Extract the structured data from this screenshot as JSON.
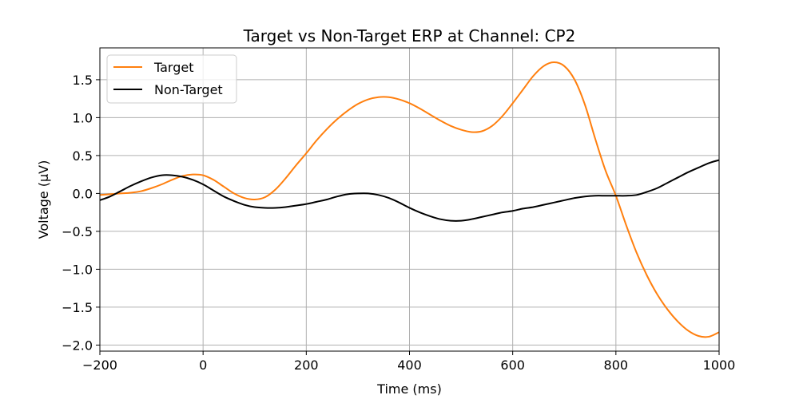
{
  "chart_data": {
    "type": "line",
    "title": "Target vs Non-Target ERP at Channel: CP2",
    "xlabel": "Time (ms)",
    "ylabel": "Voltage (μV)",
    "xlim": [
      -200,
      1000
    ],
    "ylim": [
      -2.08,
      1.92
    ],
    "xticks": [
      -200,
      0,
      200,
      400,
      600,
      800,
      1000
    ],
    "xtick_labels": [
      "−200",
      "0",
      "200",
      "400",
      "600",
      "800",
      "1000"
    ],
    "yticks": [
      -2.0,
      -1.5,
      -1.0,
      -0.5,
      0.0,
      0.5,
      1.0,
      1.5
    ],
    "ytick_labels": [
      "−2.0",
      "−1.5",
      "−1.0",
      "−0.5",
      "0.0",
      "0.5",
      "1.0",
      "1.5"
    ],
    "grid": true,
    "legend_position": "top-left",
    "series": [
      {
        "name": "Target",
        "color": "#ff7f0e",
        "x": [
          -200,
          -180,
          -160,
          -140,
          -120,
          -100,
          -80,
          -60,
          -40,
          -20,
          0,
          20,
          40,
          60,
          80,
          100,
          120,
          140,
          160,
          180,
          200,
          220,
          240,
          260,
          280,
          300,
          320,
          340,
          360,
          380,
          400,
          420,
          440,
          460,
          480,
          500,
          520,
          540,
          560,
          580,
          600,
          620,
          640,
          660,
          680,
          700,
          720,
          740,
          760,
          780,
          800,
          820,
          840,
          860,
          880,
          900,
          920,
          940,
          960,
          980,
          1000
        ],
        "y": [
          -0.02,
          -0.01,
          0.0,
          0.01,
          0.03,
          0.07,
          0.12,
          0.18,
          0.23,
          0.25,
          0.24,
          0.18,
          0.09,
          0.0,
          -0.06,
          -0.08,
          -0.05,
          0.05,
          0.2,
          0.37,
          0.53,
          0.7,
          0.85,
          0.98,
          1.09,
          1.18,
          1.24,
          1.27,
          1.27,
          1.24,
          1.19,
          1.12,
          1.04,
          0.96,
          0.89,
          0.84,
          0.81,
          0.82,
          0.89,
          1.02,
          1.19,
          1.37,
          1.55,
          1.68,
          1.73,
          1.68,
          1.5,
          1.17,
          0.72,
          0.3,
          -0.03,
          -0.42,
          -0.78,
          -1.08,
          -1.33,
          -1.53,
          -1.69,
          -1.81,
          -1.88,
          -1.89,
          -1.83
        ]
      },
      {
        "name": "Non-Target",
        "color": "#000000",
        "x": [
          -200,
          -180,
          -160,
          -140,
          -120,
          -100,
          -80,
          -60,
          -40,
          -20,
          0,
          20,
          40,
          60,
          80,
          100,
          120,
          140,
          160,
          180,
          200,
          220,
          240,
          260,
          280,
          300,
          320,
          340,
          360,
          380,
          400,
          420,
          440,
          460,
          480,
          500,
          520,
          540,
          560,
          580,
          600,
          620,
          640,
          660,
          680,
          700,
          720,
          740,
          760,
          780,
          800,
          820,
          840,
          860,
          880,
          900,
          920,
          940,
          960,
          980,
          1000
        ],
        "y": [
          -0.09,
          -0.04,
          0.03,
          0.1,
          0.16,
          0.21,
          0.24,
          0.24,
          0.22,
          0.18,
          0.12,
          0.04,
          -0.04,
          -0.1,
          -0.15,
          -0.18,
          -0.19,
          -0.19,
          -0.18,
          -0.16,
          -0.14,
          -0.11,
          -0.08,
          -0.04,
          -0.01,
          0.0,
          0.0,
          -0.02,
          -0.06,
          -0.12,
          -0.19,
          -0.25,
          -0.3,
          -0.34,
          -0.36,
          -0.36,
          -0.34,
          -0.31,
          -0.28,
          -0.25,
          -0.23,
          -0.2,
          -0.18,
          -0.15,
          -0.12,
          -0.09,
          -0.06,
          -0.04,
          -0.03,
          -0.03,
          -0.03,
          -0.03,
          -0.02,
          0.02,
          0.07,
          0.14,
          0.21,
          0.28,
          0.34,
          0.4,
          0.44
        ]
      }
    ]
  }
}
